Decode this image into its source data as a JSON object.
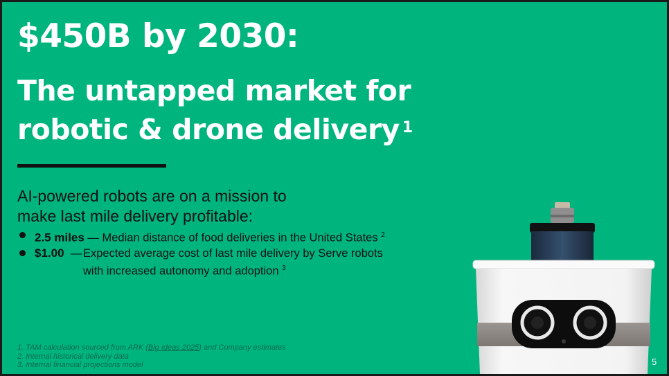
{
  "slide": {
    "title_line1": "$450B by 2030:",
    "title_line2": "The untapped market for",
    "title_line3": "robotic & drone delivery",
    "title_footnote": "1",
    "lead_line1": "AI-powered robots are on a mission to",
    "lead_line2": "make last mile delivery profitable:",
    "bullets": [
      {
        "value": "2.5 miles",
        "dash": "—",
        "text": "Median distance of food deliveries in the United States",
        "footnote": "2"
      },
      {
        "value": "$1.00",
        "dash": "—",
        "text_line1": "Expected average cost of last mile delivery by Serve robots",
        "text_line2": "with increased autonomy and adoption",
        "footnote": "3"
      }
    ],
    "footnotes": {
      "n1_prefix": "1.  TAM calculation sourced from ARK (",
      "n1_link": "Big Ideas 2025",
      "n1_suffix": ") and Company estimates",
      "n2": "2.  Internal historical delivery data",
      "n3": "3.  Internal financial projections model"
    },
    "page_number": "5"
  },
  "colors": {
    "background": "#00b47e",
    "title": "#ffffff",
    "body_text": "#111111"
  },
  "icons": {
    "robot_image": "delivery-robot-illustration"
  }
}
